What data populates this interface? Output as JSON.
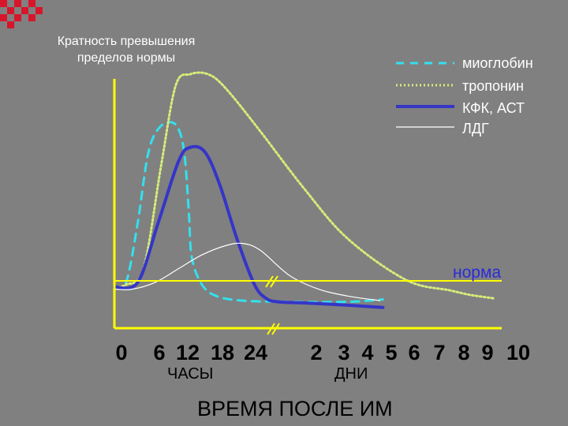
{
  "colors": {
    "background": "#808080",
    "axis": "#ffff00",
    "deco_squares": "#d8152b",
    "myoglobin": "#33e0ee",
    "troponin": "#d6ec7a",
    "ck_ast": "#3535c8",
    "ldh": "#ffffff",
    "norm_label": "#2b2bd8"
  },
  "slide": {
    "y_axis_title": "Кратность превышения пределов нормы",
    "x_axis_title": "ВРЕМЯ ПОСЛЕ ИМ",
    "hours_label": "ЧАСЫ",
    "days_label": "ДНИ",
    "norm_label": "норма"
  },
  "chart_data": {
    "type": "line",
    "x_ticks": [
      "0",
      "6",
      "12",
      "18",
      "24",
      "2",
      "3",
      "4",
      "5",
      "6",
      "7",
      "8",
      "9",
      "10"
    ],
    "x_units": {
      "hours_ticks": [
        "0",
        "6",
        "12",
        "18",
        "24"
      ],
      "days_ticks": [
        "2",
        "3",
        "4",
        "5",
        "6",
        "7",
        "8",
        "9",
        "10"
      ]
    },
    "y_axis_label": "Кратность превышения пределов нормы",
    "x_axis_label": "ВРЕМЯ ПОСЛЕ ИМ",
    "axis_break": true,
    "norm_line": {
      "label": "норма",
      "y": 1.0
    },
    "ylim": [
      0,
      11
    ],
    "grid": false,
    "legend_position": "top-right",
    "series": [
      {
        "name": "миоглобин",
        "style": "dashed",
        "color": "#33e0ee",
        "start_tick": 0,
        "points": [
          [
            0,
            0.7
          ],
          [
            0.4,
            0.9
          ],
          [
            0.8,
            3.5
          ],
          [
            1.15,
            6.5
          ],
          [
            1.5,
            7.6
          ],
          [
            1.9,
            7.9
          ],
          [
            2.2,
            7.6
          ],
          [
            2.4,
            6.5
          ],
          [
            2.55,
            4
          ],
          [
            2.65,
            2
          ],
          [
            3,
            0.8
          ],
          [
            3.5,
            0.3
          ],
          [
            4.4,
            0.1
          ],
          [
            6,
            0.05
          ],
          [
            8,
            0.05
          ],
          [
            9.2,
            0.15
          ]
        ]
      },
      {
        "name": "тропонин",
        "style": "dotted",
        "color": "#d6ec7a",
        "start_tick": 0,
        "points": [
          [
            0,
            0.7
          ],
          [
            0.4,
            0.8
          ],
          [
            1.0,
            1.5
          ],
          [
            1.6,
            6.0
          ],
          [
            2.1,
            9.5
          ],
          [
            2.6,
            10.0
          ],
          [
            3.2,
            10.0
          ],
          [
            3.8,
            9.4
          ],
          [
            5,
            7.5
          ],
          [
            6.5,
            5
          ],
          [
            8,
            2.8
          ],
          [
            10,
            1.0
          ],
          [
            11.5,
            0.55
          ],
          [
            12.2,
            0.35
          ],
          [
            13,
            0.2
          ]
        ]
      },
      {
        "name": "КФК, АСТ",
        "style": "solid",
        "color": "#3535c8",
        "start_tick": 0,
        "points": [
          [
            0,
            0.7
          ],
          [
            0.8,
            0.9
          ],
          [
            1.5,
            3.5
          ],
          [
            2.2,
            6.2
          ],
          [
            2.6,
            6.8
          ],
          [
            3.1,
            6.6
          ],
          [
            3.6,
            5.2
          ],
          [
            4.2,
            2.8
          ],
          [
            4.8,
            0.8
          ],
          [
            5.2,
            0.2
          ],
          [
            5.6,
            0.05
          ],
          [
            6.5,
            0.0
          ],
          [
            8,
            -0.1
          ],
          [
            9.2,
            -0.2
          ]
        ]
      },
      {
        "name": "ЛДГ",
        "style": "solid-thin",
        "color": "#ffffff",
        "start_tick": 0,
        "points": [
          [
            0,
            0.6
          ],
          [
            0.6,
            0.6
          ],
          [
            1.4,
            0.9
          ],
          [
            2.2,
            1.5
          ],
          [
            3.0,
            2.1
          ],
          [
            3.8,
            2.5
          ],
          [
            4.4,
            2.6
          ],
          [
            5,
            2.3
          ],
          [
            6,
            1.2
          ],
          [
            7,
            0.6
          ],
          [
            8,
            0.3
          ],
          [
            9.1,
            0.1
          ]
        ]
      }
    ]
  }
}
